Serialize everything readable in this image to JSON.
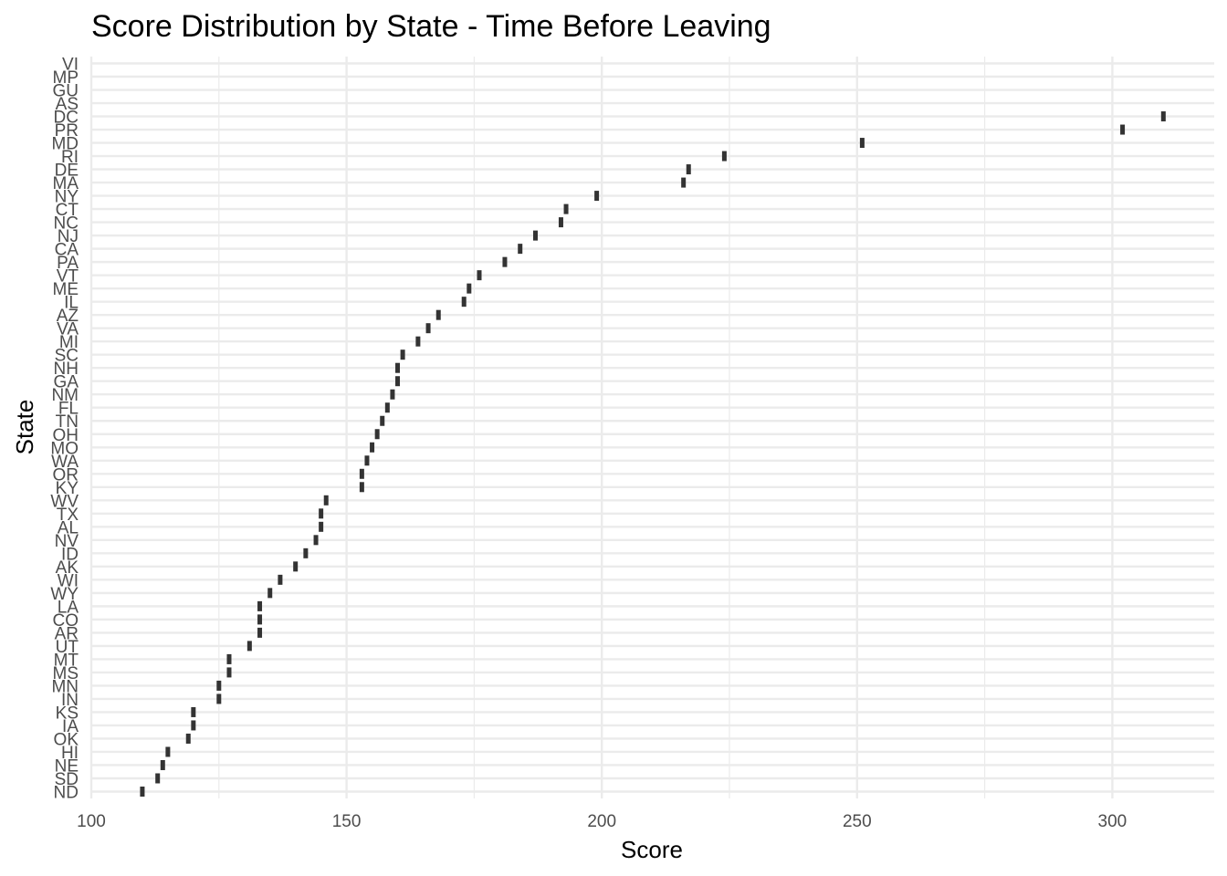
{
  "chart_data": {
    "type": "box",
    "title": "Score Distribution by State - Time Before Leaving",
    "xlabel": "Score",
    "ylabel": "State",
    "xlim": [
      100,
      320
    ],
    "xticks": [
      100,
      150,
      200,
      250,
      300
    ],
    "grid": true,
    "legend": "none",
    "categories": [
      "ND",
      "SD",
      "NE",
      "HI",
      "OK",
      "IA",
      "KS",
      "IN",
      "MN",
      "MS",
      "MT",
      "UT",
      "AR",
      "CO",
      "LA",
      "WY",
      "WI",
      "AK",
      "ID",
      "NV",
      "AL",
      "TX",
      "WV",
      "KY",
      "OR",
      "WA",
      "MO",
      "OH",
      "TN",
      "FL",
      "NM",
      "GA",
      "NH",
      "SC",
      "MI",
      "VA",
      "AZ",
      "IL",
      "ME",
      "VT",
      "PA",
      "CA",
      "NJ",
      "NC",
      "CT",
      "NY",
      "MA",
      "DE",
      "RI",
      "MD",
      "PR",
      "DC",
      "AS",
      "GU",
      "MP",
      "VI"
    ],
    "values": [
      110,
      113,
      114,
      115,
      119,
      120,
      120,
      125,
      125,
      127,
      127,
      131,
      133,
      133,
      133,
      135,
      137,
      140,
      142,
      144,
      145,
      145,
      146,
      153,
      153,
      154,
      155,
      156,
      157,
      158,
      159,
      160,
      160,
      161,
      164,
      166,
      168,
      173,
      174,
      176,
      181,
      184,
      187,
      192,
      193,
      199,
      216,
      217,
      224,
      251,
      302,
      310,
      null,
      null,
      null,
      null
    ],
    "mark_color": "#333333"
  }
}
